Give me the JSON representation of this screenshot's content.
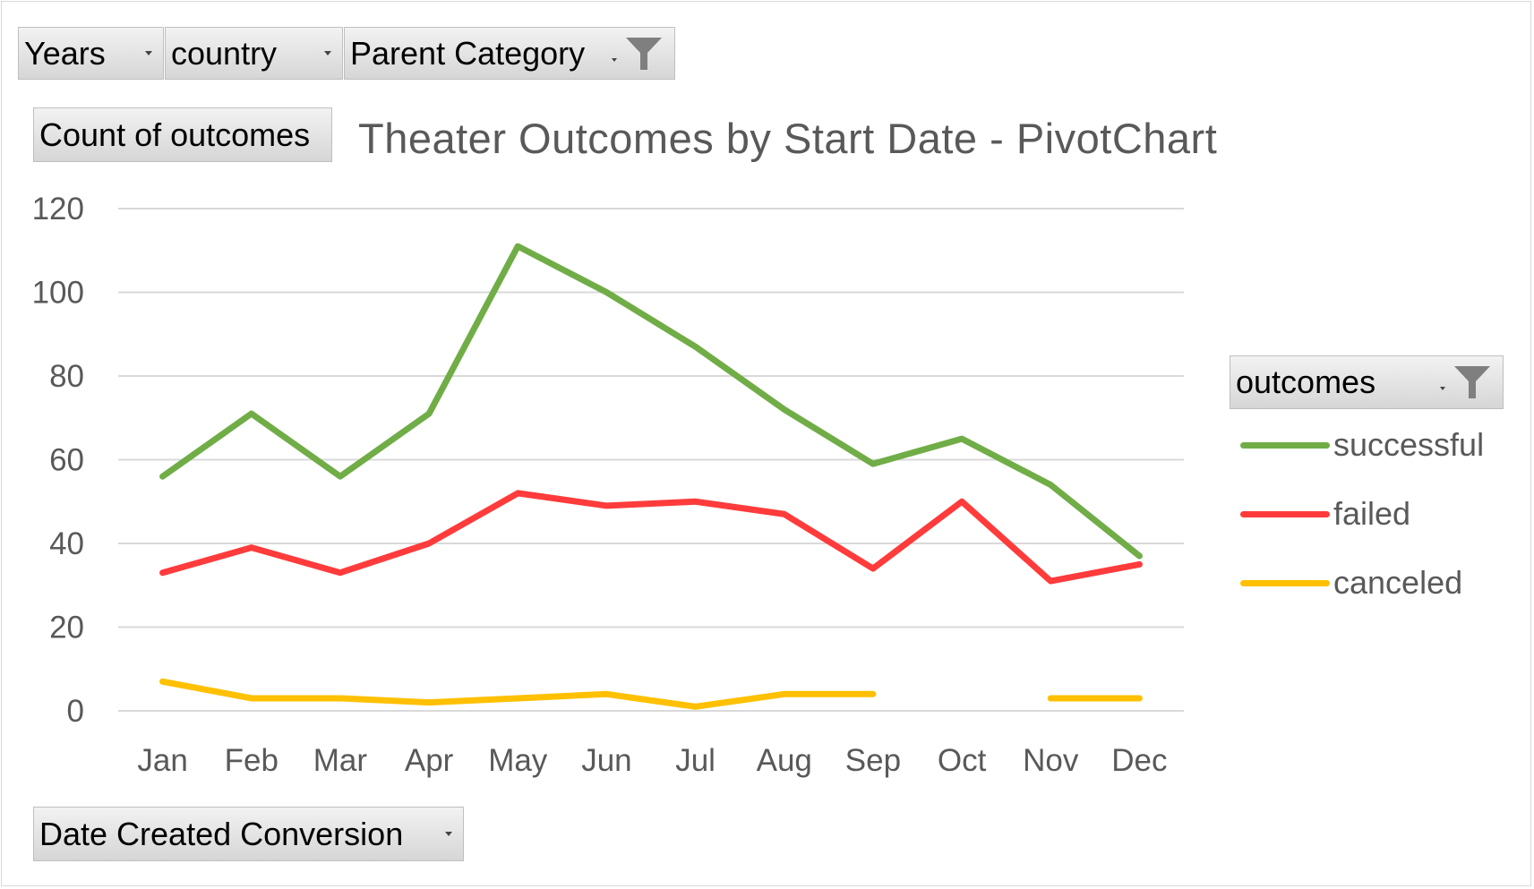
{
  "filters": {
    "years": {
      "label": "Years"
    },
    "country": {
      "label": "country"
    },
    "parent_category": {
      "label": "Parent Category"
    }
  },
  "value_field": {
    "label": "Count of outcomes"
  },
  "axis_field": {
    "label": "Date Created Conversion"
  },
  "legend_field": {
    "label": "outcomes"
  },
  "chart_data": {
    "type": "line",
    "title": "Theater Outcomes by Start Date - PivotChart",
    "xlabel": "",
    "ylabel": "",
    "categories": [
      "Jan",
      "Feb",
      "Mar",
      "Apr",
      "May",
      "Jun",
      "Jul",
      "Aug",
      "Sep",
      "Oct",
      "Nov",
      "Dec"
    ],
    "ylim": [
      0,
      120
    ],
    "yticks": [
      0,
      20,
      40,
      60,
      80,
      100,
      120
    ],
    "grid": true,
    "legend": "right",
    "series": [
      {
        "name": "successful",
        "color": "#70ad47",
        "values": [
          56,
          71,
          56,
          71,
          111,
          100,
          87,
          72,
          59,
          65,
          54,
          37
        ]
      },
      {
        "name": "failed",
        "color": "#ff3b3b",
        "values": [
          33,
          39,
          33,
          40,
          52,
          49,
          50,
          47,
          34,
          50,
          31,
          35
        ]
      },
      {
        "name": "canceled",
        "color": "#ffc000",
        "values": [
          7,
          3,
          3,
          2,
          3,
          4,
          1,
          4,
          4,
          null,
          3,
          3
        ]
      }
    ]
  }
}
